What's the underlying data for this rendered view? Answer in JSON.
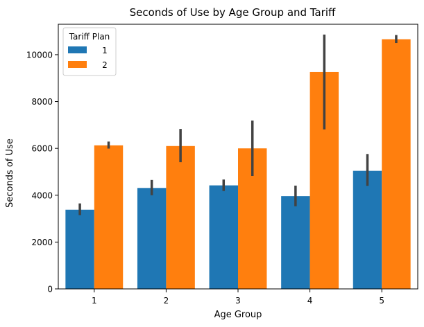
{
  "chart_data": {
    "type": "bar",
    "title": "Seconds of Use by Age Group and Tariff",
    "xlabel": "Age Group",
    "ylabel": "Seconds of Use",
    "categories": [
      "1",
      "2",
      "3",
      "4",
      "5"
    ],
    "ylim": [
      0,
      11300
    ],
    "yticks": [
      0,
      2000,
      4000,
      6000,
      8000,
      10000
    ],
    "grid": false,
    "legend": {
      "title": "Tariff Plan",
      "placement": "top-left"
    },
    "series": [
      {
        "name": "1",
        "color": "#1f77b4",
        "values": [
          3380,
          4310,
          4420,
          3960,
          5040
        ],
        "error_low": [
          3150,
          4000,
          4180,
          3530,
          4400
        ],
        "error_high": [
          3650,
          4650,
          4670,
          4410,
          5760
        ]
      },
      {
        "name": "2",
        "color": "#ff7f0e",
        "values": [
          6130,
          6100,
          6000,
          9260,
          10660
        ],
        "error_low": [
          5990,
          5410,
          4820,
          6810,
          10500
        ],
        "error_high": [
          6290,
          6830,
          7190,
          10860,
          10840
        ]
      }
    ]
  }
}
